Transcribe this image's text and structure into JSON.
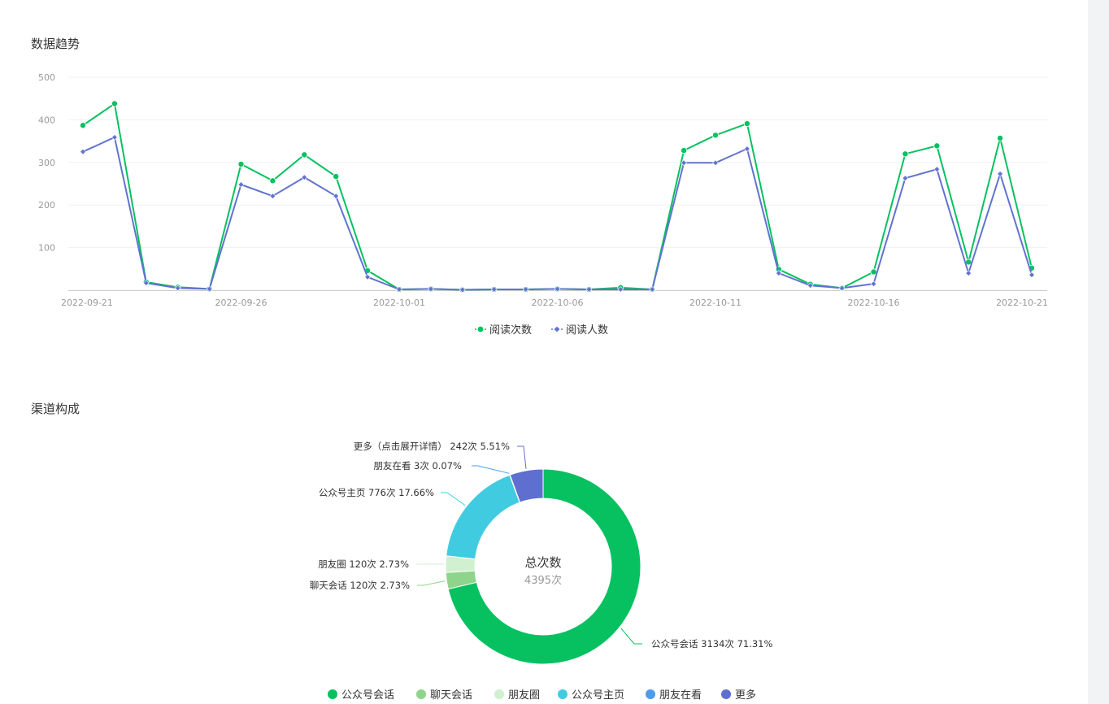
{
  "sections": {
    "trend_title": "数据趋势",
    "channel_title": "渠道构成"
  },
  "colors": {
    "series_reads": "#07c160",
    "series_users": "#6173cf"
  },
  "chart_data": [
    {
      "type": "line",
      "title": "",
      "x": [
        "2022-09-21",
        "2022-09-22",
        "2022-09-23",
        "2022-09-24",
        "2022-09-25",
        "2022-09-26",
        "2022-09-27",
        "2022-09-28",
        "2022-09-29",
        "2022-09-30",
        "2022-10-01",
        "2022-10-02",
        "2022-10-03",
        "2022-10-04",
        "2022-10-05",
        "2022-10-06",
        "2022-10-07",
        "2022-10-08",
        "2022-10-09",
        "2022-10-10",
        "2022-10-11",
        "2022-10-12",
        "2022-10-13",
        "2022-10-14",
        "2022-10-15",
        "2022-10-16",
        "2022-10-17",
        "2022-10-18",
        "2022-10-19",
        "2022-10-20",
        "2022-10-21"
      ],
      "x_tick_labels": [
        "2022-09-21",
        "2022-09-26",
        "2022-10-01",
        "2022-10-06",
        "2022-10-11",
        "2022-10-16",
        "2022-10-21"
      ],
      "y_tick_labels": [
        "100",
        "200",
        "300",
        "400",
        "500"
      ],
      "ylim": [
        0,
        500
      ],
      "grid": true,
      "legend_position": "bottom",
      "series": [
        {
          "name": "阅读次数",
          "color": "#07c160",
          "marker": "circle",
          "values": [
            387,
            438,
            19,
            7,
            3,
            296,
            257,
            318,
            267,
            46,
            2,
            3,
            1,
            2,
            2,
            3,
            2,
            6,
            2,
            328,
            364,
            391,
            49,
            14,
            5,
            43,
            320,
            339,
            66,
            357,
            52
          ]
        },
        {
          "name": "阅读人数",
          "color": "#6173cf",
          "marker": "diamond",
          "values": [
            325,
            359,
            17,
            5,
            3,
            248,
            221,
            265,
            221,
            31,
            2,
            3,
            1,
            2,
            2,
            3,
            2,
            2,
            2,
            299,
            299,
            332,
            40,
            11,
            5,
            15,
            263,
            284,
            40,
            273,
            36
          ]
        }
      ]
    },
    {
      "type": "pie",
      "title": "",
      "center_title": "总次数",
      "center_value": "4395次",
      "legend_position": "bottom",
      "slices": [
        {
          "name": "公众号会话",
          "value": 3134,
          "percent": "71.31%",
          "label": "公众号会话 3134次 71.31%",
          "color": "#07c160"
        },
        {
          "name": "聊天会话",
          "value": 120,
          "percent": "2.73%",
          "label": "聊天会话 120次 2.73%",
          "color": "#8fd48c"
        },
        {
          "name": "朋友圈",
          "value": 120,
          "percent": "2.73%",
          "label": "朋友圈 120次 2.73%",
          "color": "#d0f0d0"
        },
        {
          "name": "公众号主页",
          "value": 776,
          "percent": "17.66%",
          "label": "公众号主页 776次 17.66%",
          "color": "#40cbe0"
        },
        {
          "name": "朋友在看",
          "value": 3,
          "percent": "0.07%",
          "label": "朋友在看 3次 0.07%",
          "color": "#4c9cf0"
        },
        {
          "name": "更多",
          "value": 242,
          "percent": "5.51%",
          "label": "更多（点击展开详情） 242次 5.51%",
          "color": "#5e6fd0"
        }
      ]
    }
  ]
}
